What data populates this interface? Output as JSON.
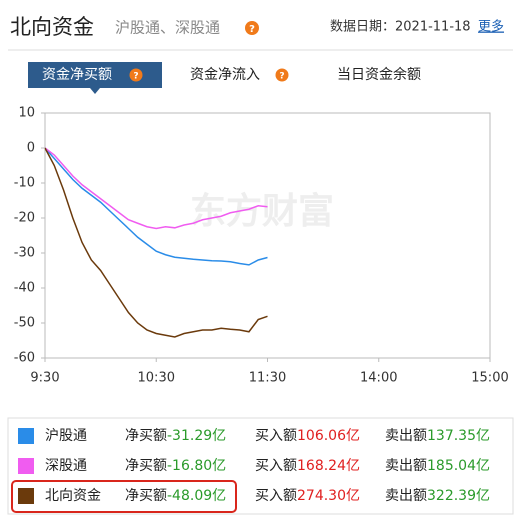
{
  "header": {
    "title": "北向资金",
    "subtitle": "沪股通、深股通",
    "date": "数据日期：2021-11-18",
    "more": "更多"
  },
  "tabs": [
    "资金净买额",
    "资金净流入",
    "当日资金余额"
  ],
  "chart_data": {
    "type": "line",
    "watermark": "东方财富",
    "x": [
      0,
      5,
      10,
      15,
      20,
      25,
      30,
      35,
      40,
      45,
      50,
      55,
      60,
      65,
      70,
      75,
      80,
      85,
      90,
      95,
      100,
      105,
      110,
      115,
      120
    ],
    "xlim": [
      0,
      240
    ],
    "xticks": [
      {
        "value": 0,
        "label": "9:30"
      },
      {
        "value": 60,
        "label": "10:30"
      },
      {
        "value": 120,
        "label": "11:30"
      },
      {
        "value": 180,
        "label": "14:00"
      },
      {
        "value": 240,
        "label": "15:00"
      }
    ],
    "ylim": [
      -60,
      10
    ],
    "yticks": [
      10,
      0,
      -10,
      -20,
      -30,
      -40,
      -50,
      -60
    ],
    "series": [
      {
        "name": "沪股通",
        "color": "#2a8ce8",
        "values": [
          0,
          -3,
          -6,
          -9,
          -11.5,
          -13.5,
          -15.5,
          -18,
          -20.5,
          -23,
          -25.5,
          -27.5,
          -29.5,
          -30.5,
          -31.2,
          -31.5,
          -31.8,
          -32,
          -32.2,
          -32.3,
          -32.5,
          -33,
          -33.4,
          -32,
          -31.29
        ]
      },
      {
        "name": "深股通",
        "color": "#f05cf0",
        "values": [
          0,
          -2,
          -5,
          -8,
          -10.5,
          -12.5,
          -14.5,
          -16.5,
          -18.5,
          -20.5,
          -21.5,
          -22.5,
          -23,
          -22.5,
          -22.8,
          -22,
          -21.5,
          -20.5,
          -20,
          -19.5,
          -18.5,
          -18,
          -17.5,
          -16.5,
          -16.8
        ]
      },
      {
        "name": "北向资金",
        "color": "#6b3a0c",
        "values": [
          0,
          -5,
          -12,
          -20,
          -27,
          -32,
          -35,
          -39,
          -43,
          -47,
          -50,
          -52,
          -53,
          -53.5,
          -54,
          -53,
          -52.5,
          -52,
          -52,
          -51.5,
          -51.8,
          -52,
          -52.5,
          -49,
          -48.09
        ]
      }
    ]
  },
  "summary": [
    {
      "net_label": "净买额",
      "net": "-31.29亿",
      "buy_label": "买入额",
      "buy": "106.06亿",
      "sell_label": "卖出额",
      "sell": "137.35亿"
    },
    {
      "net_label": "净买额",
      "net": "-16.80亿",
      "buy_label": "买入额",
      "buy": "168.24亿",
      "sell_label": "卖出额",
      "sell": "185.04亿"
    },
    {
      "net_label": "净买额",
      "net": "-48.09亿",
      "buy_label": "买入额",
      "buy": "274.30亿",
      "sell_label": "卖出额",
      "sell": "322.39亿"
    }
  ]
}
